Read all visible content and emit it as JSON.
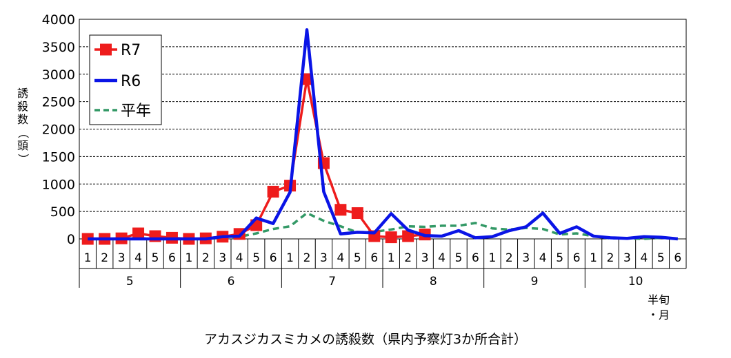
{
  "chart_data": {
    "type": "line",
    "title": "アカスジカスミカメの誘殺数（県内予察灯3か所合計）",
    "ylabel": "誘殺数（頭）",
    "xlabel": "半旬・月",
    "ylim": [
      0,
      4000
    ],
    "yticks": [
      0,
      500,
      1000,
      1500,
      2000,
      2500,
      3000,
      3500,
      4000
    ],
    "grid": "horizontal-dashed",
    "legend_position": "top-left",
    "categories": [
      "1",
      "2",
      "3",
      "4",
      "5",
      "6",
      "1",
      "2",
      "3",
      "4",
      "5",
      "6",
      "1",
      "2",
      "3",
      "4",
      "5",
      "6",
      "1",
      "2",
      "3",
      "4",
      "5",
      "6",
      "1",
      "2",
      "3",
      "4",
      "5",
      "6",
      "1",
      "2",
      "3",
      "4",
      "5",
      "6"
    ],
    "months": [
      "5",
      "6",
      "7",
      "8",
      "9",
      "10"
    ],
    "series": [
      {
        "name": "R7",
        "color": "#ee1c1c",
        "style": "solid-square-markers",
        "values": [
          0,
          0,
          10,
          100,
          50,
          20,
          0,
          10,
          40,
          90,
          250,
          860,
          970,
          2910,
          1380,
          530,
          470,
          50,
          30,
          50,
          80,
          null,
          null,
          null,
          null,
          null,
          null,
          null,
          null,
          null,
          null,
          null,
          null,
          null,
          null,
          null
        ]
      },
      {
        "name": "R6",
        "color": "#0a14e6",
        "style": "solid",
        "values": [
          0,
          0,
          0,
          0,
          0,
          0,
          0,
          0,
          40,
          50,
          380,
          280,
          850,
          3810,
          860,
          90,
          120,
          110,
          460,
          160,
          60,
          50,
          150,
          20,
          40,
          150,
          220,
          470,
          100,
          220,
          50,
          20,
          10,
          40,
          30,
          0
        ]
      },
      {
        "name": "平年",
        "color": "#339966",
        "style": "dashed",
        "values": [
          0,
          0,
          0,
          10,
          10,
          0,
          0,
          0,
          20,
          40,
          100,
          180,
          230,
          470,
          330,
          230,
          120,
          130,
          170,
          230,
          220,
          240,
          240,
          290,
          190,
          170,
          200,
          180,
          80,
          100,
          50,
          10,
          10,
          0,
          20,
          0
        ]
      }
    ]
  }
}
